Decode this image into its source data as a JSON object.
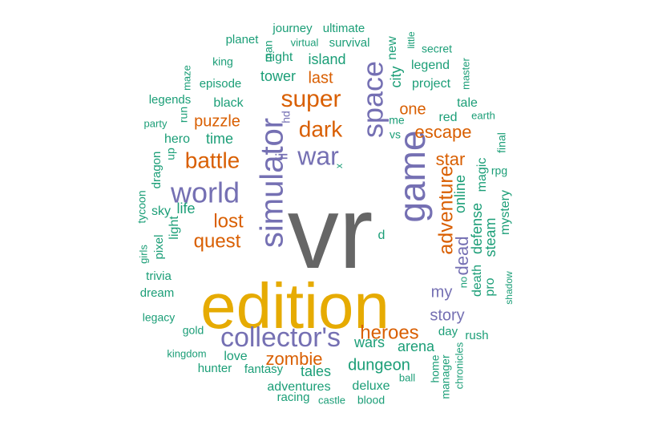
{
  "colors": {
    "gray": "#666666",
    "gold": "#E6AB02",
    "purple": "#7570B3",
    "orange": "#D95F02",
    "teal": "#1B9E77"
  },
  "words": [
    {
      "text": "vr",
      "color": "gray"
    },
    {
      "text": "edition",
      "color": "gold"
    },
    {
      "text": "game",
      "color": "purple"
    },
    {
      "text": "simulator",
      "color": "purple"
    },
    {
      "text": "collector's",
      "color": "purple"
    },
    {
      "text": "space",
      "color": "purple"
    },
    {
      "text": "world",
      "color": "purple"
    },
    {
      "text": "war",
      "color": "purple"
    },
    {
      "text": "super",
      "color": "orange"
    },
    {
      "text": "battle",
      "color": "orange"
    },
    {
      "text": "dark",
      "color": "orange"
    },
    {
      "text": "adventure",
      "color": "orange"
    },
    {
      "text": "heroes",
      "color": "orange"
    },
    {
      "text": "zombie",
      "color": "orange"
    },
    {
      "text": "quest",
      "color": "orange"
    },
    {
      "text": "lost",
      "color": "orange"
    },
    {
      "text": "escape",
      "color": "orange"
    },
    {
      "text": "puzzle",
      "color": "orange"
    },
    {
      "text": "star",
      "color": "orange"
    },
    {
      "text": "one",
      "color": "orange"
    },
    {
      "text": "last",
      "color": "orange"
    },
    {
      "text": "my",
      "color": "purple"
    },
    {
      "text": "dead",
      "color": "purple"
    },
    {
      "text": "story",
      "color": "purple"
    },
    {
      "text": "dungeon",
      "color": "teal"
    },
    {
      "text": "ii",
      "color": "purple"
    },
    {
      "text": "hd",
      "color": "purple"
    },
    {
      "text": "x",
      "color": "teal"
    },
    {
      "text": "d",
      "color": "teal"
    },
    {
      "text": "online",
      "color": "teal"
    },
    {
      "text": "defense",
      "color": "teal"
    },
    {
      "text": "steam",
      "color": "teal"
    },
    {
      "text": "death",
      "color": "teal"
    },
    {
      "text": "pro",
      "color": "teal"
    },
    {
      "text": "magic",
      "color": "teal"
    },
    {
      "text": "mystery",
      "color": "teal"
    },
    {
      "text": "red",
      "color": "teal"
    },
    {
      "text": "tale",
      "color": "teal"
    },
    {
      "text": "project",
      "color": "teal"
    },
    {
      "text": "legend",
      "color": "teal"
    },
    {
      "text": "city",
      "color": "teal"
    },
    {
      "text": "new",
      "color": "teal"
    },
    {
      "text": "island",
      "color": "teal"
    },
    {
      "text": "tower",
      "color": "teal"
    },
    {
      "text": "night",
      "color": "teal"
    },
    {
      "text": "man",
      "color": "teal"
    },
    {
      "text": "time",
      "color": "teal"
    },
    {
      "text": "hero",
      "color": "teal"
    },
    {
      "text": "up",
      "color": "teal"
    },
    {
      "text": "life",
      "color": "teal"
    },
    {
      "text": "light",
      "color": "teal"
    },
    {
      "text": "sky",
      "color": "teal"
    },
    {
      "text": "wars",
      "color": "teal"
    },
    {
      "text": "arena",
      "color": "teal"
    },
    {
      "text": "tales",
      "color": "teal"
    },
    {
      "text": "fantasy",
      "color": "teal"
    },
    {
      "text": "love",
      "color": "teal"
    },
    {
      "text": "hunter",
      "color": "teal"
    },
    {
      "text": "adventures",
      "color": "teal"
    },
    {
      "text": "deluxe",
      "color": "teal"
    },
    {
      "text": "racing",
      "color": "teal"
    },
    {
      "text": "castle",
      "color": "teal"
    },
    {
      "text": "blood",
      "color": "teal"
    },
    {
      "text": "ball",
      "color": "teal"
    },
    {
      "text": "day",
      "color": "teal"
    },
    {
      "text": "rush",
      "color": "teal"
    },
    {
      "text": "gold",
      "color": "teal"
    },
    {
      "text": "kingdom",
      "color": "teal"
    },
    {
      "text": "legacy",
      "color": "teal"
    },
    {
      "text": "dream",
      "color": "teal"
    },
    {
      "text": "trivia",
      "color": "teal"
    },
    {
      "text": "pixel",
      "color": "teal"
    },
    {
      "text": "girls",
      "color": "teal"
    },
    {
      "text": "tycoon",
      "color": "teal"
    },
    {
      "text": "dragon",
      "color": "teal"
    },
    {
      "text": "party",
      "color": "teal"
    },
    {
      "text": "run",
      "color": "teal"
    },
    {
      "text": "legends",
      "color": "teal"
    },
    {
      "text": "maze",
      "color": "teal"
    },
    {
      "text": "episode",
      "color": "teal"
    },
    {
      "text": "black",
      "color": "teal"
    },
    {
      "text": "king",
      "color": "teal"
    },
    {
      "text": "planet",
      "color": "teal"
    },
    {
      "text": "journey",
      "color": "teal"
    },
    {
      "text": "ultimate",
      "color": "teal"
    },
    {
      "text": "virtual",
      "color": "teal"
    },
    {
      "text": "survival",
      "color": "teal"
    },
    {
      "text": "little",
      "color": "teal"
    },
    {
      "text": "secret",
      "color": "teal"
    },
    {
      "text": "master",
      "color": "teal"
    },
    {
      "text": "earth",
      "color": "teal"
    },
    {
      "text": "me",
      "color": "teal"
    },
    {
      "text": "vs",
      "color": "teal"
    },
    {
      "text": "final",
      "color": "teal"
    },
    {
      "text": "rpg",
      "color": "teal"
    },
    {
      "text": "no",
      "color": "teal"
    },
    {
      "text": "shadow",
      "color": "teal"
    },
    {
      "text": "home",
      "color": "teal"
    },
    {
      "text": "manager",
      "color": "teal"
    },
    {
      "text": "chronicles",
      "color": "teal"
    }
  ]
}
